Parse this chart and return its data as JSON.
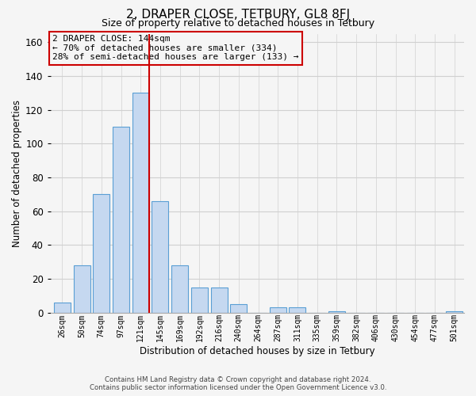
{
  "title": "2, DRAPER CLOSE, TETBURY, GL8 8FJ",
  "subtitle": "Size of property relative to detached houses in Tetbury",
  "xlabel": "Distribution of detached houses by size in Tetbury",
  "ylabel": "Number of detached properties",
  "bar_labels": [
    "26sqm",
    "50sqm",
    "74sqm",
    "97sqm",
    "121sqm",
    "145sqm",
    "169sqm",
    "192sqm",
    "216sqm",
    "240sqm",
    "264sqm",
    "287sqm",
    "311sqm",
    "335sqm",
    "359sqm",
    "382sqm",
    "406sqm",
    "430sqm",
    "454sqm",
    "477sqm",
    "501sqm"
  ],
  "bar_values": [
    6,
    28,
    70,
    110,
    130,
    66,
    28,
    15,
    15,
    5,
    0,
    3,
    3,
    0,
    1,
    0,
    0,
    0,
    0,
    0,
    1
  ],
  "bar_color": "#c5d8f0",
  "bar_edge_color": "#5a9fd4",
  "highlight_bar_index": 4,
  "highlight_line_color": "#cc0000",
  "ylim": [
    0,
    165
  ],
  "yticks": [
    0,
    20,
    40,
    60,
    80,
    100,
    120,
    140,
    160
  ],
  "annotation_title": "2 DRAPER CLOSE: 144sqm",
  "annotation_line1": "← 70% of detached houses are smaller (334)",
  "annotation_line2": "28% of semi-detached houses are larger (133) →",
  "annotation_box_edge": "#cc0000",
  "footer_line1": "Contains HM Land Registry data © Crown copyright and database right 2024.",
  "footer_line2": "Contains public sector information licensed under the Open Government Licence v3.0.",
  "background_color": "#f5f5f5",
  "grid_color": "#d0d0d0"
}
